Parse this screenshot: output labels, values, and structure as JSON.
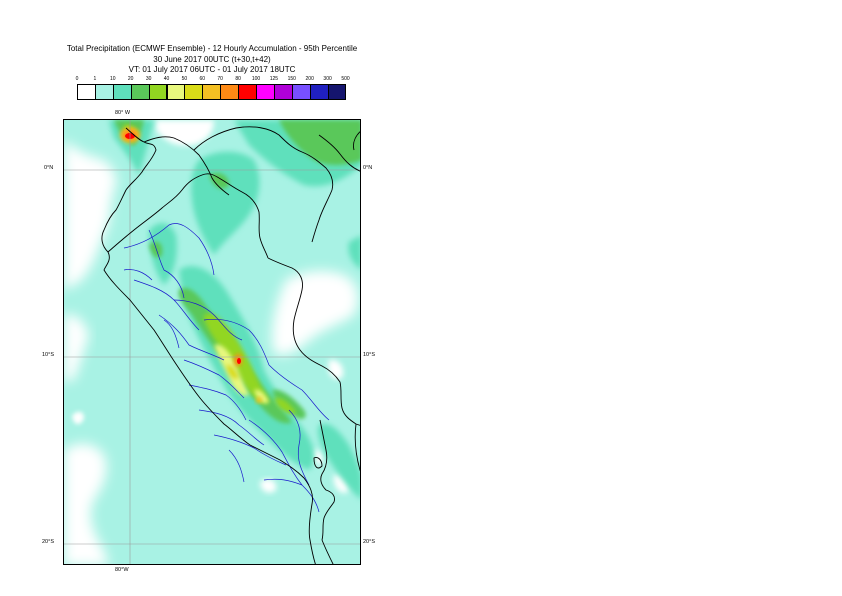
{
  "title": {
    "line1": "Total Precipitation (ECMWF Ensemble) - 12 Hourly Accumulation - 95th Percentile",
    "line2": "30 June 2017 00UTC (t+30,t+42)",
    "line3": "VT: 01 July 2017 06UTC - 01 July 2017 18UTC"
  },
  "legend": {
    "labels": [
      "0",
      "1",
      "10",
      "20",
      "30",
      "40",
      "50",
      "60",
      "70",
      "80",
      "100",
      "125",
      "150",
      "200",
      "300",
      "500"
    ],
    "colors": [
      "#ffffff",
      "#a8f2e4",
      "#5ee0bc",
      "#5ac85a",
      "#92d621",
      "#e8f87e",
      "#d9dc18",
      "#f4c023",
      "#ff8a15",
      "#ff0000",
      "#ff00ff",
      "#b000d8",
      "#7850ff",
      "#2020c0",
      "#15156e"
    ]
  },
  "map": {
    "lon_top": "80° W",
    "lon_bottom": "80°W",
    "lat_left": [
      "0°N",
      "10°S",
      "20°S"
    ],
    "lat_right": [
      "0°N",
      "10°S",
      "20°S"
    ]
  }
}
